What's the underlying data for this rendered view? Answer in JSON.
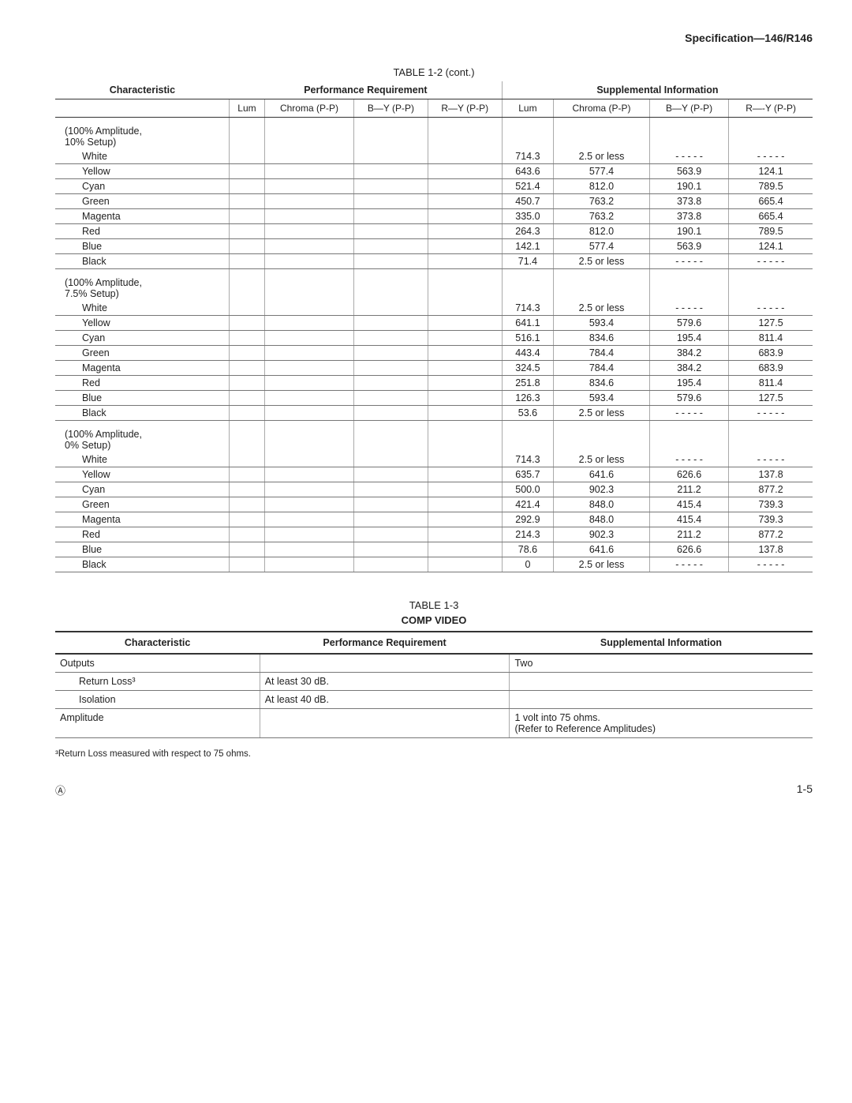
{
  "header": {
    "spec": "Specification—146/R146"
  },
  "table12": {
    "title": "TABLE 1-2 (cont.)",
    "headers": {
      "characteristic": "Characteristic",
      "perf": "Performance Requirement",
      "supp": "Supplemental Information",
      "cols": [
        "Lum",
        "Chroma (P-P)",
        "B—Y (P-P)",
        "R—Y (P-P)",
        "Lum",
        "Chroma (P-P)",
        "B—Y (P-P)",
        "R—-Y (P-P)"
      ]
    },
    "sections": [
      {
        "label": "(100% Amplitude,\n10% Setup)",
        "rows": [
          {
            "name": "White",
            "lum": "714.3",
            "chroma": "2.5 or less",
            "by": "- - - - -",
            "ry": "- - - - -"
          },
          {
            "name": "Yellow",
            "lum": "643.6",
            "chroma": "577.4",
            "by": "563.9",
            "ry": "124.1"
          },
          {
            "name": "Cyan",
            "lum": "521.4",
            "chroma": "812.0",
            "by": "190.1",
            "ry": "789.5"
          },
          {
            "name": "Green",
            "lum": "450.7",
            "chroma": "763.2",
            "by": "373.8",
            "ry": "665.4"
          },
          {
            "name": "Magenta",
            "lum": "335.0",
            "chroma": "763.2",
            "by": "373.8",
            "ry": "665.4"
          },
          {
            "name": "Red",
            "lum": "264.3",
            "chroma": "812.0",
            "by": "190.1",
            "ry": "789.5"
          },
          {
            "name": "Blue",
            "lum": "142.1",
            "chroma": "577.4",
            "by": "563.9",
            "ry": "124.1"
          },
          {
            "name": "Black",
            "lum": "71.4",
            "chroma": "2.5 or less",
            "by": "- - - - -",
            "ry": "- - - - -"
          }
        ]
      },
      {
        "label": "(100% Amplitude,\n7.5% Setup)",
        "rows": [
          {
            "name": "White",
            "lum": "714.3",
            "chroma": "2.5 or less",
            "by": "- - - - -",
            "ry": "- - - - -"
          },
          {
            "name": "Yellow",
            "lum": "641.1",
            "chroma": "593.4",
            "by": "579.6",
            "ry": "127.5"
          },
          {
            "name": "Cyan",
            "lum": "516.1",
            "chroma": "834.6",
            "by": "195.4",
            "ry": "811.4"
          },
          {
            "name": "Green",
            "lum": "443.4",
            "chroma": "784.4",
            "by": "384.2",
            "ry": "683.9"
          },
          {
            "name": "Magenta",
            "lum": "324.5",
            "chroma": "784.4",
            "by": "384.2",
            "ry": "683.9"
          },
          {
            "name": "Red",
            "lum": "251.8",
            "chroma": "834.6",
            "by": "195.4",
            "ry": "811.4"
          },
          {
            "name": "Blue",
            "lum": "126.3",
            "chroma": "593.4",
            "by": "579.6",
            "ry": "127.5"
          },
          {
            "name": "Black",
            "lum": "53.6",
            "chroma": "2.5 or less",
            "by": "- - - - -",
            "ry": "- - - - -"
          }
        ]
      },
      {
        "label": "(100% Amplitude,\n0% Setup)",
        "rows": [
          {
            "name": "White",
            "lum": "714.3",
            "chroma": "2.5 or less",
            "by": "- - - - -",
            "ry": "- - - - -"
          },
          {
            "name": "Yellow",
            "lum": "635.7",
            "chroma": "641.6",
            "by": "626.6",
            "ry": "137.8"
          },
          {
            "name": "Cyan",
            "lum": "500.0",
            "chroma": "902.3",
            "by": "211.2",
            "ry": "877.2"
          },
          {
            "name": "Green",
            "lum": "421.4",
            "chroma": "848.0",
            "by": "415.4",
            "ry": "739.3"
          },
          {
            "name": "Magenta",
            "lum": "292.9",
            "chroma": "848.0",
            "by": "415.4",
            "ry": "739.3"
          },
          {
            "name": "Red",
            "lum": "214.3",
            "chroma": "902.3",
            "by": "211.2",
            "ry": "877.2"
          },
          {
            "name": "Blue",
            "lum": "78.6",
            "chroma": "641.6",
            "by": "626.6",
            "ry": "137.8"
          },
          {
            "name": "Black",
            "lum": "0",
            "chroma": "2.5 or less",
            "by": "- - - - -",
            "ry": "- - - - -"
          }
        ]
      }
    ]
  },
  "table13": {
    "title": "TABLE 1-3",
    "subtitle": "COMP VIDEO",
    "headers": {
      "c": "Characteristic",
      "p": "Performance Requirement",
      "s": "Supplemental Information"
    },
    "rows": [
      {
        "c": "Outputs",
        "p": "",
        "s": "Two",
        "indent": 0
      },
      {
        "c": "Return Loss³",
        "p": "At least 30 dB.",
        "s": "",
        "indent": 1
      },
      {
        "c": "Isolation",
        "p": "At least 40 dB.",
        "s": "",
        "indent": 1
      },
      {
        "c": "Amplitude",
        "p": "",
        "s": "1 volt into 75 ohms.\n(Refer to Reference Amplitudes)",
        "indent": 0
      }
    ]
  },
  "footnote": "³Return Loss measured with respect to 75 ohms.",
  "footer": {
    "page": "1-5"
  }
}
